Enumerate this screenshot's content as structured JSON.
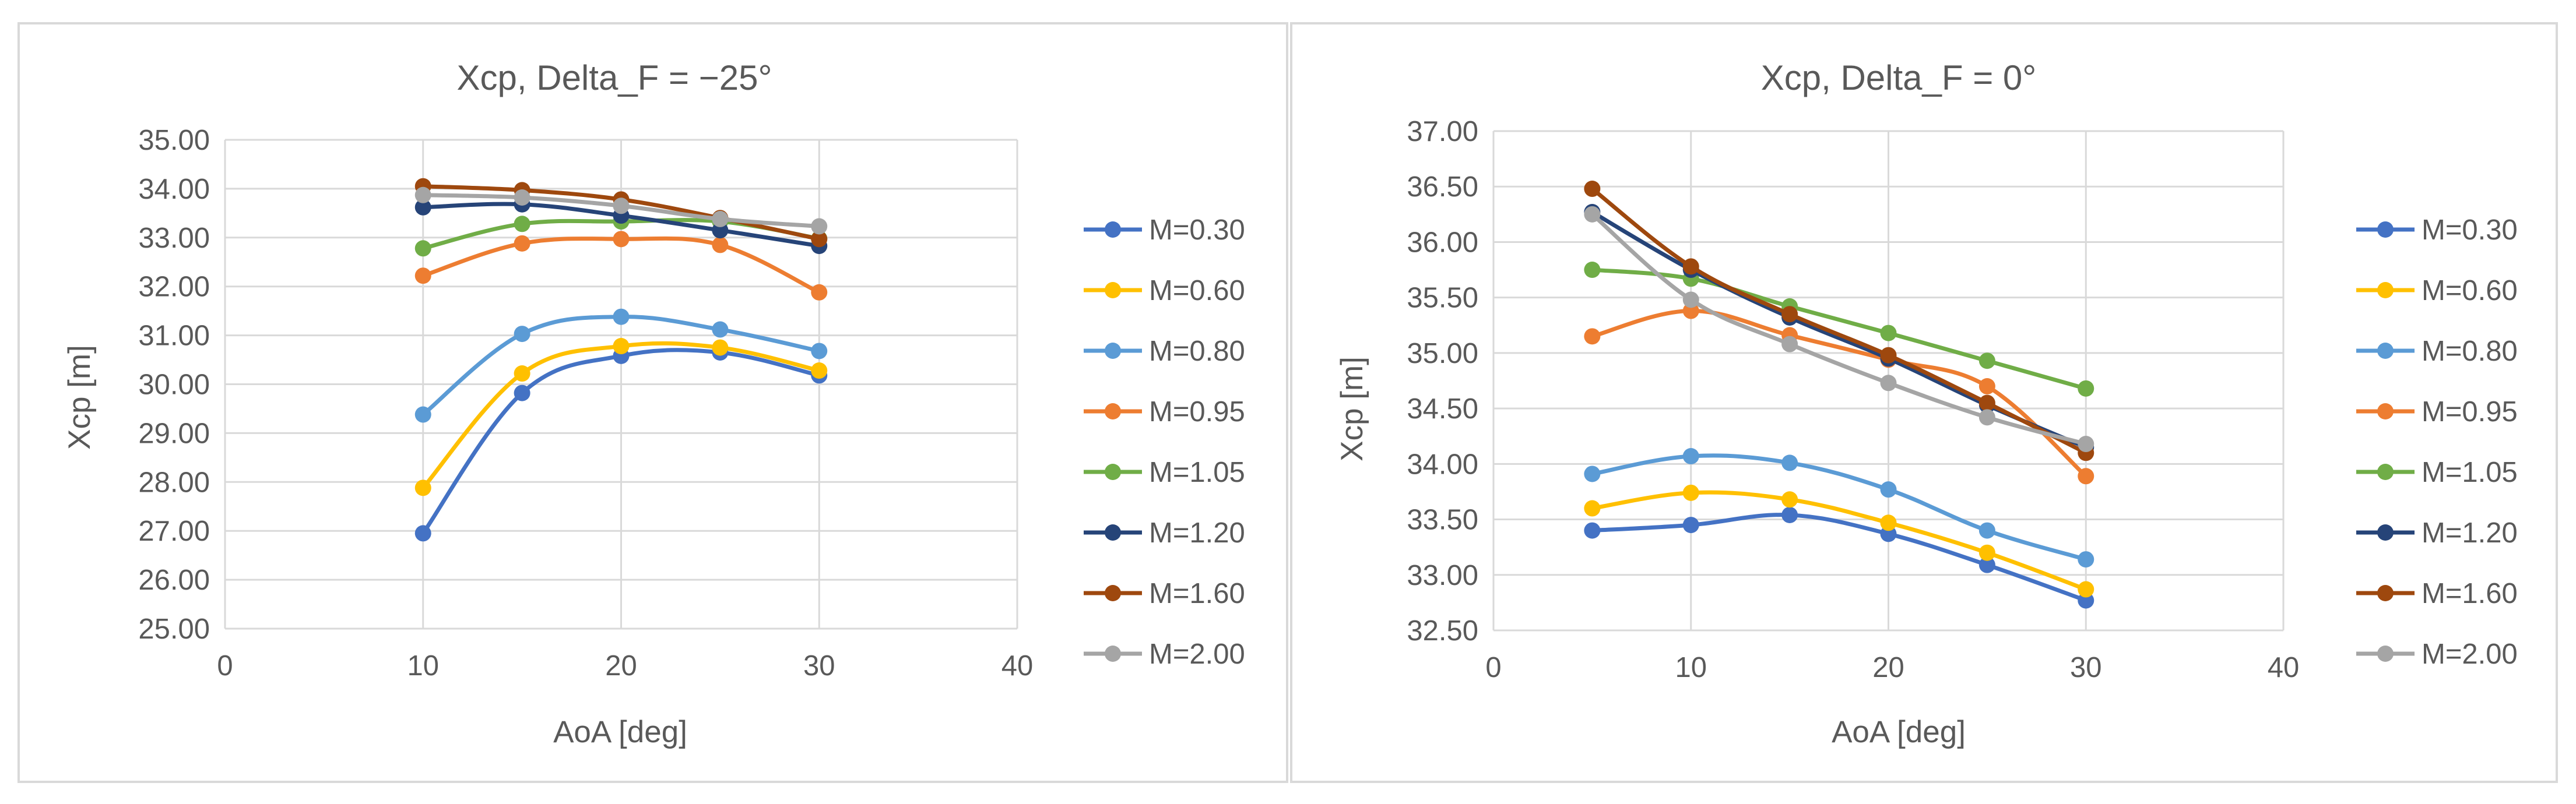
{
  "chart_data": [
    {
      "type": "line",
      "title": "Xcp, Delta_F = −25°",
      "xlabel": "AoA [deg]",
      "ylabel": "Xcp [m]",
      "xlim": [
        0,
        40
      ],
      "ylim": [
        25,
        35
      ],
      "xticks": [
        "0",
        "10",
        "20",
        "30",
        "40"
      ],
      "yticks": [
        "25.00",
        "26.00",
        "27.00",
        "28.00",
        "29.00",
        "30.00",
        "31.00",
        "32.00",
        "33.00",
        "34.00",
        "35.00"
      ],
      "grid": true,
      "legend_position": "right",
      "x": [
        10,
        15,
        20,
        25,
        30
      ],
      "series": [
        {
          "name": "M=0.30",
          "color": "#4472C4",
          "values": [
            26.95,
            29.82,
            30.58,
            30.65,
            30.18
          ]
        },
        {
          "name": "M=0.60",
          "color": "#FFC000",
          "values": [
            27.88,
            30.22,
            30.78,
            30.75,
            30.28
          ]
        },
        {
          "name": "M=0.80",
          "color": "#5B9BD5",
          "values": [
            29.38,
            31.03,
            31.38,
            31.12,
            30.68
          ]
        },
        {
          "name": "M=0.95",
          "color": "#ED7D31",
          "values": [
            32.22,
            32.88,
            32.97,
            32.85,
            31.88
          ]
        },
        {
          "name": "M=1.05",
          "color": "#70AD47",
          "values": [
            32.78,
            33.28,
            33.33,
            33.33,
            32.98
          ]
        },
        {
          "name": "M=1.20",
          "color": "#264478",
          "values": [
            33.62,
            33.68,
            33.45,
            33.15,
            32.83
          ]
        },
        {
          "name": "M=1.60",
          "color": "#9E480E",
          "values": [
            34.05,
            33.97,
            33.78,
            33.4,
            32.97
          ]
        },
        {
          "name": "M=2.00",
          "color": "#A5A5A5",
          "values": [
            33.87,
            33.82,
            33.65,
            33.38,
            33.23
          ]
        }
      ]
    },
    {
      "type": "line",
      "title": "Xcp, Delta_F = 0°",
      "xlabel": "AoA [deg]",
      "ylabel": "Xcp [m]",
      "xlim": [
        0,
        40
      ],
      "ylim": [
        32.5,
        37
      ],
      "xticks": [
        "0",
        "10",
        "20",
        "30",
        "40"
      ],
      "yticks": [
        "32.50",
        "33.00",
        "33.50",
        "34.00",
        "34.50",
        "35.00",
        "35.50",
        "36.00",
        "36.50",
        "37.00"
      ],
      "grid": true,
      "legend_position": "right",
      "x": [
        5,
        10,
        15,
        20,
        25,
        30
      ],
      "series": [
        {
          "name": "M=0.30",
          "color": "#4472C4",
          "values": [
            33.4,
            33.45,
            33.54,
            33.37,
            33.09,
            32.77
          ]
        },
        {
          "name": "M=0.60",
          "color": "#FFC000",
          "values": [
            33.6,
            33.74,
            33.68,
            33.47,
            33.2,
            32.87
          ]
        },
        {
          "name": "M=0.80",
          "color": "#5B9BD5",
          "values": [
            33.91,
            34.07,
            34.01,
            33.77,
            33.4,
            33.14
          ]
        },
        {
          "name": "M=0.95",
          "color": "#ED7D31",
          "values": [
            35.15,
            35.38,
            35.16,
            34.94,
            34.7,
            33.89
          ]
        },
        {
          "name": "M=1.05",
          "color": "#70AD47",
          "values": [
            35.75,
            35.67,
            35.42,
            35.18,
            34.93,
            34.68
          ]
        },
        {
          "name": "M=1.20",
          "color": "#264478",
          "values": [
            36.27,
            35.75,
            35.32,
            34.95,
            34.53,
            34.15
          ]
        },
        {
          "name": "M=1.60",
          "color": "#9E480E",
          "values": [
            36.48,
            35.78,
            35.35,
            34.98,
            34.55,
            34.1
          ]
        },
        {
          "name": "M=2.00",
          "color": "#A5A5A5",
          "values": [
            36.25,
            35.48,
            35.08,
            34.73,
            34.42,
            34.18
          ]
        }
      ]
    }
  ]
}
